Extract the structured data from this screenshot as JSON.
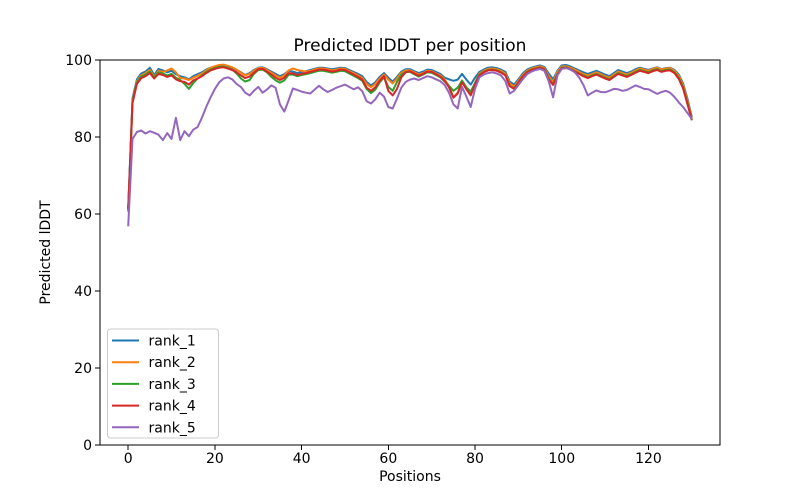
{
  "chart_data": {
    "type": "line",
    "title": "Predicted lDDT per position",
    "xlabel": "Positions",
    "ylabel": "Predicted lDDT",
    "xlim": [
      -6.5,
      136.5
    ],
    "ylim": [
      0,
      100
    ],
    "x_ticks": [
      0,
      20,
      40,
      60,
      80,
      100,
      120
    ],
    "y_ticks": [
      0,
      20,
      40,
      60,
      80,
      100
    ],
    "grid": false,
    "legend_position": "lower left",
    "legend_border_color": "#cccccc",
    "axis_color": "#000000",
    "x_start": 0,
    "x_step": 1,
    "n_points": 131,
    "series": [
      {
        "name": "rank_1",
        "color": "#1f77b4",
        "values": [
          61.5,
          90,
          95,
          96.5,
          97,
          98,
          96.1,
          97.7,
          97.3,
          96.8,
          97.2,
          96.3,
          95.8,
          95.5,
          95,
          95.8,
          96.3,
          96.8,
          97.5,
          98,
          98.3,
          98.6,
          98.7,
          98.4,
          98,
          97.4,
          96.8,
          96.1,
          96.6,
          97.4,
          98,
          98.1,
          97.6,
          97,
          96.4,
          95.8,
          96.3,
          97.2,
          97,
          96.6,
          96.9,
          97.1,
          97.4,
          97.7,
          98,
          98,
          97.8,
          97.6,
          97.8,
          98,
          97.9,
          97.4,
          96.9,
          96.4,
          95.8,
          94.3,
          93.4,
          94.2,
          95.6,
          96.6,
          95.4,
          94.4,
          95.6,
          97,
          97.6,
          97.6,
          97.1,
          96.6,
          97,
          97.5,
          97.4,
          96.9,
          96.4,
          95.4,
          95,
          94.6,
          94.9,
          96.4,
          94.9,
          93.6,
          95.4,
          96.9,
          97.5,
          98,
          98.1,
          97.9,
          97.5,
          96.9,
          94.4,
          93.6,
          95,
          96.5,
          97.5,
          98,
          98.3,
          98.6,
          98.2,
          96.5,
          95,
          97.2,
          98.6,
          98.7,
          98.3,
          97.8,
          97.3,
          96.8,
          96.4,
          96.8,
          97.2,
          96.7,
          96.2,
          95.8,
          96.6,
          97.4,
          97,
          96.6,
          97,
          97.6,
          98,
          97.7,
          97.4,
          97.8,
          98.1,
          97.6,
          97.9,
          98,
          97.4,
          96.2,
          93.9,
          89.9,
          85.2
        ]
      },
      {
        "name": "rank_2",
        "color": "#ff7f0e",
        "values": [
          60.5,
          89.3,
          94.5,
          96,
          96.6,
          97.4,
          95.7,
          97.2,
          96.9,
          97.3,
          97.8,
          96.8,
          95.3,
          95.2,
          94.8,
          95.4,
          95.9,
          96.5,
          97.3,
          98,
          98.4,
          98.7,
          98.8,
          98.5,
          98.1,
          97.5,
          96.7,
          96,
          96.4,
          97.2,
          97.9,
          98,
          97.4,
          96.7,
          96,
          95.4,
          96,
          97.3,
          97.8,
          97.4,
          97.2,
          97,
          97.2,
          97.5,
          97.8,
          97.8,
          97.6,
          97.3,
          97.5,
          97.8,
          97.7,
          97.1,
          96.6,
          96,
          95.3,
          93.8,
          92.9,
          93.8,
          95.2,
          96.2,
          94.9,
          93.9,
          95.2,
          96.7,
          97.3,
          97.3,
          96.8,
          96.2,
          96.6,
          97.2,
          97.1,
          96.5,
          96,
          94.9,
          93.2,
          90.3,
          91.5,
          94.7,
          92.8,
          91,
          94,
          96.5,
          97.2,
          97.7,
          97.8,
          97.6,
          97.2,
          96.5,
          93.9,
          93.1,
          94.6,
          96.1,
          97.2,
          97.8,
          98.1,
          98.4,
          97.9,
          95.8,
          94.3,
          96.9,
          98.3,
          98.4,
          98,
          97.5,
          96.9,
          96.4,
          96,
          96.4,
          96.8,
          96.3,
          95.8,
          95.4,
          96.2,
          97,
          96.6,
          96.2,
          96.7,
          97.3,
          97.8,
          97.5,
          97.2,
          97.7,
          98,
          97.5,
          97.8,
          97.9,
          97.2,
          95.9,
          93.5,
          89.4,
          84.8
        ]
      },
      {
        "name": "rank_3",
        "color": "#2ca02c",
        "values": [
          61,
          89,
          94.2,
          95.7,
          96.2,
          97,
          95.5,
          96.8,
          96.5,
          96,
          96.4,
          95.4,
          94.8,
          93.8,
          92.5,
          94,
          95.2,
          96,
          96.9,
          97.5,
          97.9,
          98.2,
          98.3,
          98,
          97.5,
          96.5,
          95.2,
          94.4,
          94.8,
          96.4,
          97.4,
          97.5,
          96.8,
          95.6,
          94.7,
          94.1,
          94.7,
          96.2,
          96.2,
          95.8,
          96.1,
          96.3,
          96.6,
          96.9,
          97.2,
          97.2,
          97,
          96.7,
          96.9,
          97.2,
          97.1,
          96.5,
          95.9,
          95.3,
          94.6,
          92.5,
          91.4,
          92.3,
          94.2,
          95.5,
          93,
          92,
          94.3,
          96.2,
          96.9,
          96.9,
          96.3,
          95.7,
          96.2,
          96.8,
          96.7,
          96.1,
          95.5,
          94.4,
          93.3,
          92,
          92.8,
          94.6,
          92.9,
          91.8,
          94,
          96.2,
          96.9,
          97.4,
          97.5,
          97.3,
          96.8,
          96.1,
          93.3,
          92.6,
          94.2,
          95.8,
          96.9,
          97.5,
          97.8,
          98.1,
          97.6,
          95.2,
          93.7,
          96.3,
          98,
          98.1,
          97.7,
          97.1,
          96.5,
          96,
          95.5,
          96,
          96.4,
          95.9,
          95.4,
          95,
          95.8,
          96.6,
          96.2,
          95.8,
          96.3,
          96.9,
          97.4,
          97.1,
          96.8,
          97.3,
          97.6,
          97.1,
          97.4,
          97.5,
          96.8,
          95.4,
          92.9,
          88.8,
          84.3
        ]
      },
      {
        "name": "rank_4",
        "color": "#d62728",
        "values": [
          61.2,
          88.8,
          93.8,
          95.3,
          95.8,
          96.6,
          95.2,
          96.4,
          96.1,
          95.6,
          96,
          95,
          94.5,
          94.3,
          93.6,
          94.7,
          95.2,
          95.8,
          96.6,
          97.3,
          97.7,
          98,
          98.1,
          97.8,
          97.4,
          96.8,
          96,
          95.3,
          95.7,
          96.7,
          97.6,
          97.7,
          97,
          96.2,
          95.4,
          94.8,
          95.4,
          96.6,
          96.5,
          96.1,
          96.4,
          96.6,
          96.9,
          97.2,
          97.5,
          97.5,
          97.3,
          97,
          97.2,
          97.5,
          97.4,
          96.8,
          96.2,
          95.6,
          94.9,
          92.8,
          92,
          92.9,
          94.6,
          95.8,
          92,
          90.8,
          92.5,
          95.5,
          96.8,
          97.1,
          96.5,
          95.9,
          96.4,
          97,
          96.9,
          96.3,
          95.7,
          94.6,
          92.9,
          90.2,
          91.3,
          94.2,
          92.4,
          90.8,
          93.7,
          96,
          96.8,
          97.3,
          97.4,
          97.2,
          96.7,
          96,
          93.2,
          92.5,
          94.1,
          95.7,
          96.8,
          97.4,
          97.7,
          98,
          97.5,
          95,
          93.5,
          96.1,
          97.9,
          98,
          97.6,
          97,
          96.4,
          95.8,
          95.3,
          95.8,
          96.2,
          95.7,
          95.2,
          94.8,
          95.6,
          96.4,
          96,
          95.6,
          96.1,
          96.7,
          97.2,
          96.9,
          96.6,
          97.1,
          97.4,
          96.9,
          97.2,
          97.3,
          96.6,
          95.1,
          92.6,
          88.5,
          84.5
        ]
      },
      {
        "name": "rank_5",
        "color": "#9467bd",
        "values": [
          56.8,
          79.5,
          81.3,
          81.7,
          80.9,
          81.5,
          81.1,
          80.6,
          79.2,
          81,
          79.5,
          85,
          79.2,
          81.5,
          80.2,
          81.9,
          82.6,
          85,
          87.8,
          90.3,
          92.5,
          94.2,
          95.2,
          95.5,
          95,
          93.8,
          93,
          91.5,
          90.8,
          92,
          93,
          91.5,
          92.3,
          93.4,
          92.8,
          88.5,
          86.6,
          89.5,
          92.6,
          92.2,
          91.8,
          91.5,
          91.3,
          92.3,
          93.3,
          92.4,
          91.7,
          92.2,
          92.8,
          93.2,
          93.6,
          93,
          92.4,
          92.9,
          91.9,
          89.3,
          88.7,
          89.8,
          91.5,
          90.5,
          87.8,
          87.4,
          90,
          92.8,
          94.3,
          94.9,
          95.2,
          94.8,
          95.3,
          95.8,
          95.5,
          95,
          94.5,
          93.5,
          91.5,
          88.5,
          87.4,
          93,
          90.5,
          87.8,
          92.5,
          95.5,
          96.2,
          96.6,
          96.8,
          96.5,
          96,
          94.5,
          91.3,
          92,
          93.5,
          95,
          96.3,
          97,
          97.4,
          97.7,
          97.2,
          94.5,
          90.3,
          96,
          97.7,
          97.9,
          97.5,
          96.8,
          95.5,
          93.5,
          90.8,
          91.5,
          92.1,
          91.7,
          91.6,
          92,
          92.5,
          92.4,
          92,
          92.2,
          92.8,
          93.4,
          93,
          92.5,
          92.4,
          91.8,
          91.2,
          91.7,
          92,
          91.5,
          90.4,
          89,
          87.8,
          86.2,
          84.7
        ]
      }
    ]
  }
}
